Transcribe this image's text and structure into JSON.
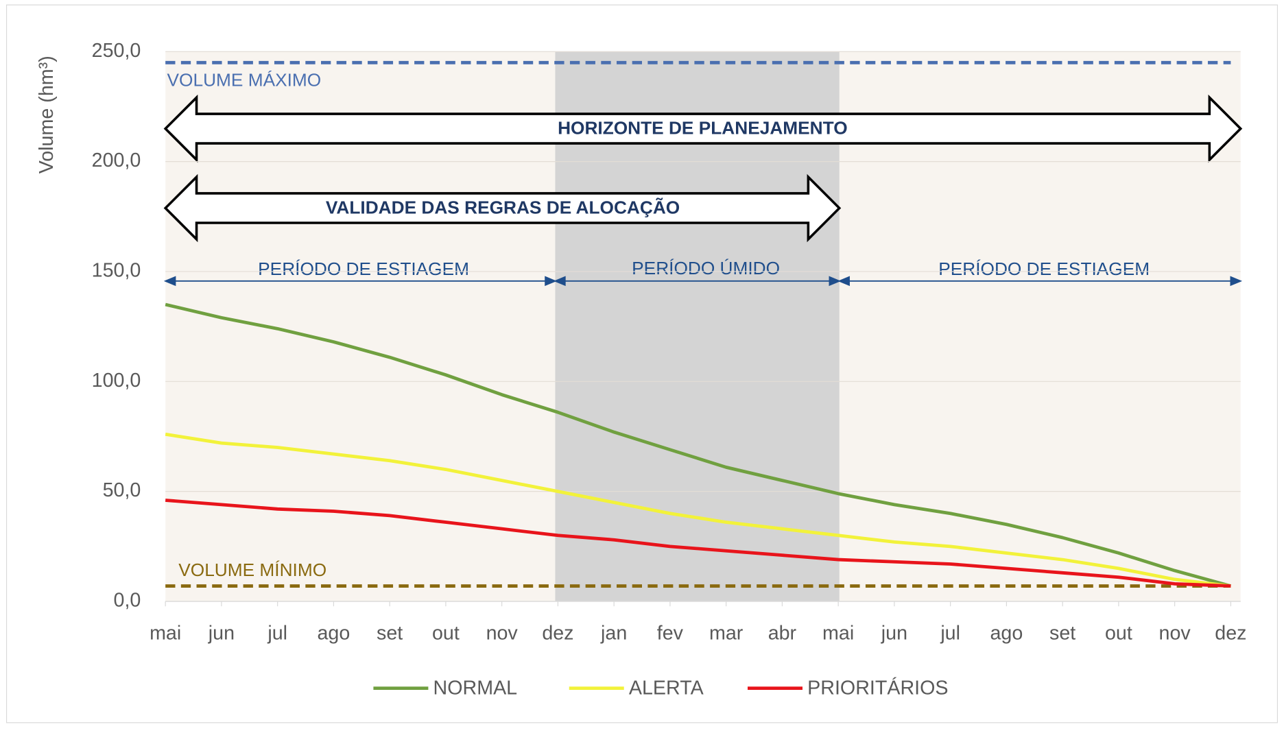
{
  "chart_data": {
    "type": "line",
    "y_label": "Volume (hm³)",
    "categories": [
      "mai",
      "jun",
      "jul",
      "ago",
      "set",
      "out",
      "nov",
      "dez",
      "jan",
      "fev",
      "mar",
      "abr",
      "mai",
      "jun",
      "jul",
      "ago",
      "set",
      "out",
      "nov",
      "dez"
    ],
    "series": [
      {
        "name": "NORMAL",
        "color": "#70a040",
        "values": [
          135,
          129,
          124,
          118,
          111,
          103,
          94,
          86,
          77,
          69,
          61,
          55,
          49,
          44,
          40,
          35,
          29,
          22,
          14,
          7
        ]
      },
      {
        "name": "ALERTA",
        "color": "#f2f23a",
        "values": [
          76,
          72,
          70,
          67,
          64,
          60,
          55,
          50,
          45,
          40,
          36,
          33,
          30,
          27,
          25,
          22,
          19,
          15,
          10,
          7
        ]
      },
      {
        "name": "PRIORITÁRIOS",
        "color": "#e8141b",
        "values": [
          46,
          44,
          42,
          41,
          39,
          36,
          33,
          30,
          28,
          25,
          23,
          21,
          19,
          18,
          17,
          15,
          13,
          11,
          8,
          7
        ]
      }
    ],
    "ylim": [
      0,
      250
    ],
    "yticks": [
      {
        "value": 0,
        "label": "0,0"
      },
      {
        "value": 50,
        "label": "50,0"
      },
      {
        "value": 100,
        "label": "100,0"
      },
      {
        "value": 150,
        "label": "150,0"
      },
      {
        "value": 200,
        "label": "200,0"
      },
      {
        "value": 250,
        "label": "250,0"
      }
    ],
    "grid": true,
    "legend": "bottom",
    "volume_max": {
      "label": "VOLUME MÁXIMO",
      "value": 245,
      "color": "#4a6fb0"
    },
    "volume_min": {
      "label": "VOLUME MÍNIMO",
      "value": 7,
      "color": "#8a6a10"
    },
    "annotations": {
      "horizon": "HORIZONTE DE PLANEJAMENTO",
      "validity": "VALIDADE DAS REGRAS DE ALOCAÇÃO",
      "periods": [
        "PERÍODO DE ESTIAGEM",
        "PERÍODO ÚMIDO",
        "PERÍODO DE ESTIAGEM"
      ]
    }
  }
}
